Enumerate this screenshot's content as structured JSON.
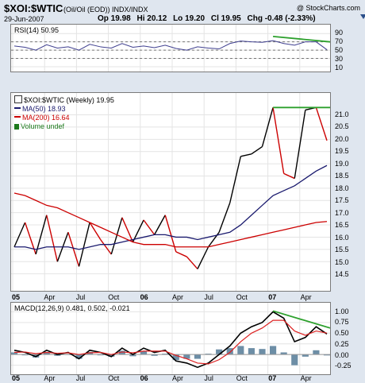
{
  "header": {
    "symbol": "$XOI:$WTIC",
    "description": "(Oil/Oil (EOD))  INDX/INDX",
    "date": "29-Jun-2007",
    "quote": [
      "Op 19.98",
      "Hi 20.12",
      "Lo 19.20",
      "Cl 19.95",
      "Chg -0.48 (-2.33%)"
    ],
    "brand": "@ StockCharts.com"
  },
  "colors": {
    "price": "#000000",
    "price_down": "#cc0000",
    "ma50": "#1a1a6e",
    "ma200": "#cc0000",
    "volume": "#6d8ea6",
    "trend": "#2ca02c",
    "rsi": "#3f3f8f",
    "signal": "#dd2222"
  },
  "chart_data": [
    {
      "type": "line",
      "title": "RSI(14) 50.95",
      "ylim": [
        10,
        100
      ],
      "yticks": [
        90,
        70,
        50,
        30,
        10
      ],
      "reference_lines": [
        70,
        50,
        30
      ],
      "x": [
        "2005-01",
        "2005-02",
        "2005-03",
        "2005-04",
        "2005-05",
        "2005-06",
        "2005-07",
        "2005-08",
        "2005-09",
        "2005-10",
        "2005-11",
        "2005-12",
        "2006-01",
        "2006-02",
        "2006-03",
        "2006-04",
        "2006-05",
        "2006-06",
        "2006-07",
        "2006-08",
        "2006-09",
        "2006-10",
        "2006-11",
        "2006-12",
        "2007-01",
        "2007-02",
        "2007-03",
        "2007-04",
        "2007-05",
        "2007-06"
      ],
      "series": [
        {
          "values": [
            60,
            57,
            50,
            63,
            55,
            58,
            50,
            64,
            58,
            55,
            66,
            57,
            60,
            56,
            62,
            54,
            50,
            58,
            55,
            53,
            66,
            72,
            70,
            69,
            73,
            66,
            62,
            70,
            70,
            51
          ]
        }
      ],
      "trendline": {
        "from": [
          "2007-01",
          83
        ],
        "to": [
          "2007-06",
          70
        ]
      }
    },
    {
      "type": "line",
      "title": "$XOI:$WTIC (Weekly) 19.95",
      "ylim": [
        14,
        21.7
      ],
      "yticks": [
        21.0,
        20.5,
        20.0,
        19.5,
        19.0,
        18.5,
        18.0,
        17.5,
        17.0,
        16.5,
        16.0,
        15.5,
        15.0,
        14.5
      ],
      "xticks": [
        "05",
        "Apr",
        "Jul",
        "Oct",
        "06",
        "Apr",
        "Jul",
        "Oct",
        "07",
        "Apr"
      ],
      "legend": [
        "$XOI:$WTIC (Weekly) 19.95",
        "MA(50) 18.93",
        "MA(200) 16.64",
        "Volume undef"
      ],
      "x": [
        "2005-01",
        "2005-02",
        "2005-03",
        "2005-04",
        "2005-05",
        "2005-06",
        "2005-07",
        "2005-08",
        "2005-09",
        "2005-10",
        "2005-11",
        "2005-12",
        "2006-01",
        "2006-02",
        "2006-03",
        "2006-04",
        "2006-05",
        "2006-06",
        "2006-07",
        "2006-08",
        "2006-09",
        "2006-10",
        "2006-11",
        "2006-12",
        "2007-01",
        "2007-02",
        "2007-03",
        "2007-04",
        "2007-05",
        "2007-06"
      ],
      "series": [
        {
          "name": "$XOI:$WTIC (Weekly) 19.95",
          "values": [
            15.6,
            16.6,
            15.3,
            16.9,
            15.0,
            16.2,
            14.8,
            16.6,
            15.9,
            15.3,
            16.8,
            15.8,
            16.7,
            16.1,
            16.9,
            15.4,
            15.2,
            14.7,
            15.6,
            16.2,
            17.4,
            19.3,
            19.4,
            19.7,
            21.3,
            18.6,
            18.4,
            21.2,
            21.3,
            19.95
          ]
        },
        {
          "name": "MA(50) 18.93",
          "values": [
            15.6,
            15.6,
            15.5,
            15.6,
            15.6,
            15.6,
            15.5,
            15.6,
            15.7,
            15.7,
            15.8,
            15.9,
            16.0,
            16.1,
            16.1,
            16.0,
            16.0,
            15.9,
            16.0,
            16.1,
            16.2,
            16.5,
            16.9,
            17.3,
            17.7,
            17.9,
            18.1,
            18.4,
            18.7,
            18.93
          ]
        },
        {
          "name": "MA(200) 16.64",
          "values": [
            17.8,
            17.7,
            17.5,
            17.3,
            17.2,
            17.0,
            16.8,
            16.6,
            16.4,
            16.2,
            16.0,
            15.8,
            15.7,
            15.7,
            15.7,
            15.6,
            15.6,
            15.6,
            15.6,
            15.7,
            15.8,
            15.9,
            16.0,
            16.1,
            16.2,
            16.3,
            16.4,
            16.5,
            16.6,
            16.64
          ]
        }
      ],
      "trendline": {
        "from": [
          "2007-01",
          21.3
        ],
        "to": [
          "2007-06",
          21.3
        ]
      }
    },
    {
      "type": "line",
      "title": "MACD(12,26,9) 0.481, 0.502, -0.021",
      "ylim": [
        -0.35,
        1.1
      ],
      "yticks": [
        1.0,
        0.75,
        0.5,
        0.25,
        0.0,
        -0.25
      ],
      "xticks": [
        "05",
        "Apr",
        "Jul",
        "Oct",
        "06",
        "Apr",
        "Jul",
        "Oct",
        "07",
        "Apr"
      ],
      "x": [
        "2005-01",
        "2005-02",
        "2005-03",
        "2005-04",
        "2005-05",
        "2005-06",
        "2005-07",
        "2005-08",
        "2005-09",
        "2005-10",
        "2005-11",
        "2005-12",
        "2006-01",
        "2006-02",
        "2006-03",
        "2006-04",
        "2006-05",
        "2006-06",
        "2006-07",
        "2006-08",
        "2006-09",
        "2006-10",
        "2006-11",
        "2006-12",
        "2007-01",
        "2007-02",
        "2007-03",
        "2007-04",
        "2007-05",
        "2007-06"
      ],
      "series": [
        {
          "name": "MACD",
          "values": [
            0.1,
            0.05,
            -0.05,
            0.1,
            0.0,
            0.05,
            -0.1,
            0.1,
            0.05,
            -0.05,
            0.15,
            0.0,
            0.15,
            0.05,
            0.1,
            -0.15,
            -0.2,
            -0.3,
            -0.2,
            0.0,
            0.2,
            0.5,
            0.65,
            0.75,
            1.0,
            0.85,
            0.3,
            0.4,
            0.65,
            0.481
          ]
        },
        {
          "name": "Signal",
          "values": [
            0.05,
            0.06,
            0.02,
            0.05,
            0.03,
            0.04,
            0.0,
            0.04,
            0.05,
            0.0,
            0.06,
            0.04,
            0.08,
            0.08,
            0.08,
            -0.02,
            -0.1,
            -0.2,
            -0.22,
            -0.12,
            0.05,
            0.3,
            0.5,
            0.62,
            0.8,
            0.8,
            0.55,
            0.45,
            0.55,
            0.502
          ]
        },
        {
          "name": "Histogram",
          "values": [
            0.05,
            -0.01,
            -0.07,
            0.05,
            -0.03,
            0.01,
            -0.1,
            0.06,
            0.0,
            -0.05,
            0.09,
            -0.04,
            0.07,
            -0.03,
            0.02,
            -0.13,
            -0.1,
            -0.1,
            0.02,
            0.12,
            0.15,
            0.2,
            0.15,
            0.13,
            0.2,
            0.05,
            -0.25,
            -0.05,
            0.1,
            -0.021
          ]
        }
      ],
      "trendline": {
        "from": [
          "2007-01",
          1.02
        ],
        "to": [
          "2007-06",
          0.62
        ]
      }
    }
  ]
}
